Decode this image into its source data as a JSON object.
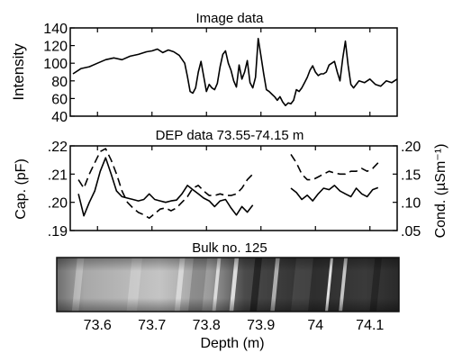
{
  "chart_data": [
    {
      "type": "line",
      "title": "Image data",
      "ylabel": "Intensity",
      "ylim": [
        40,
        140
      ],
      "yticks": [
        40,
        60,
        80,
        100,
        120,
        140
      ],
      "xlim": [
        73.55,
        74.15
      ],
      "xticks": [
        73.6,
        73.7,
        73.8,
        73.9,
        74.0,
        74.1
      ],
      "grid": false,
      "series": [
        {
          "color": "#000000",
          "x": [
            73.555,
            73.57,
            73.585,
            73.6,
            73.615,
            73.63,
            73.645,
            73.66,
            73.675,
            73.69,
            73.7,
            73.71,
            73.72,
            73.73,
            73.74,
            73.75,
            73.76,
            73.765,
            73.77,
            73.775,
            73.78,
            73.785,
            73.79,
            73.795,
            73.8,
            73.805,
            73.81,
            73.815,
            73.82,
            73.825,
            73.83,
            73.835,
            73.84,
            73.845,
            73.85,
            73.855,
            73.86,
            73.865,
            73.87,
            73.875,
            73.88,
            73.885,
            73.89,
            73.895,
            73.9,
            73.905,
            73.91,
            73.915,
            73.92,
            73.925,
            73.93,
            73.935,
            73.94,
            73.945,
            73.95,
            73.955,
            73.96,
            73.965,
            73.97,
            73.975,
            73.98,
            73.985,
            73.99,
            73.995,
            74.0,
            74.005,
            74.01,
            74.015,
            74.02,
            74.025,
            74.03,
            74.035,
            74.04,
            74.045,
            74.05,
            74.055,
            74.06,
            74.065,
            74.07,
            74.08,
            74.09,
            74.1,
            74.11,
            74.12,
            74.13,
            74.14,
            74.15
          ],
          "values": [
            88,
            94,
            96,
            100,
            104,
            106,
            104,
            108,
            110,
            113,
            114,
            116,
            112,
            115,
            113,
            109,
            100,
            85,
            68,
            66,
            72,
            90,
            102,
            85,
            68,
            76,
            72,
            70,
            77,
            96,
            110,
            114,
            100,
            92,
            80,
            73,
            98,
            82,
            90,
            103,
            78,
            72,
            84,
            128,
            108,
            88,
            70,
            68,
            65,
            62,
            58,
            62,
            56,
            52,
            55,
            54,
            58,
            70,
            68,
            72,
            78,
            84,
            92,
            97,
            90,
            86,
            88,
            88,
            90,
            98,
            100,
            102,
            90,
            80,
            105,
            125,
            98,
            76,
            72,
            80,
            78,
            82,
            76,
            74,
            80,
            78,
            82
          ]
        }
      ]
    },
    {
      "type": "line",
      "title": "DEP data 73.55-74.15 m",
      "ylabel": "Cap. (pF)",
      "ylim": [
        0.19,
        0.22
      ],
      "yticks": [
        ".19",
        ".20",
        ".21",
        ".22"
      ],
      "y2label": "Cond. (µSm⁻¹)",
      "y2lim": [
        0.05,
        0.2
      ],
      "y2ticks": [
        ".05",
        ".10",
        ".15",
        ".20"
      ],
      "xlim": [
        73.55,
        74.15
      ],
      "series": [
        {
          "axis": "left",
          "style": "solid",
          "segments": [
            {
              "x": [
                73.565,
                73.575,
                73.585,
                73.595,
                73.605,
                73.615,
                73.625,
                73.635,
                73.645,
                73.655,
                73.665,
                73.675,
                73.685,
                73.695,
                73.705,
                73.715,
                73.725,
                73.735,
                73.745,
                73.755,
                73.765,
                73.775,
                73.785,
                73.795,
                73.805,
                73.815,
                73.825,
                73.835,
                73.845,
                73.855,
                73.865,
                73.875,
                73.885
              ],
              "values": [
                0.203,
                0.1952,
                0.2,
                0.204,
                0.211,
                0.2158,
                0.21,
                0.204,
                0.202,
                0.2015,
                0.201,
                0.2005,
                0.201,
                0.203,
                0.201,
                0.2005,
                0.2,
                0.2005,
                0.2008,
                0.203,
                0.206,
                0.2045,
                0.203,
                0.2015,
                0.2005,
                0.1985,
                0.2005,
                0.201,
                0.198,
                0.1955,
                0.1985,
                0.1965,
                0.199
              ]
            },
            {
              "x": [
                73.955,
                73.965,
                73.975,
                73.985,
                73.995,
                74.005,
                74.015,
                74.025,
                74.035,
                74.045,
                74.055,
                74.065,
                74.075,
                74.085,
                74.095,
                74.105,
                74.115
              ],
              "values": [
                0.205,
                0.2035,
                0.201,
                0.2025,
                0.2005,
                0.203,
                0.205,
                0.2045,
                0.206,
                0.204,
                0.203,
                0.202,
                0.205,
                0.203,
                0.202,
                0.2045,
                0.2052
              ]
            }
          ]
        },
        {
          "axis": "right",
          "style": "dashed",
          "segments": [
            {
              "x": [
                73.565,
                73.575,
                73.585,
                73.595,
                73.605,
                73.615,
                73.625,
                73.635,
                73.645,
                73.655,
                73.665,
                73.675,
                73.685,
                73.695,
                73.705,
                73.715,
                73.725,
                73.735,
                73.745,
                73.755,
                73.765,
                73.775,
                73.785,
                73.795,
                73.805,
                73.815,
                73.825,
                73.835,
                73.845,
                73.855,
                73.865,
                73.875,
                73.885
              ],
              "values": [
                0.14,
                0.125,
                0.15,
                0.17,
                0.19,
                0.195,
                0.175,
                0.15,
                0.12,
                0.1,
                0.09,
                0.082,
                0.078,
                0.072,
                0.08,
                0.088,
                0.09,
                0.085,
                0.09,
                0.1,
                0.11,
                0.125,
                0.13,
                0.12,
                0.112,
                0.112,
                0.115,
                0.112,
                0.112,
                0.115,
                0.125,
                0.14,
                0.15
              ]
            },
            {
              "x": [
                73.955,
                73.965,
                73.975,
                73.985,
                73.995,
                74.005,
                74.015,
                74.025,
                74.035,
                74.045,
                74.055,
                74.065,
                74.075,
                74.085,
                74.095,
                74.105,
                74.115
              ],
              "values": [
                0.185,
                0.17,
                0.15,
                0.14,
                0.14,
                0.145,
                0.15,
                0.155,
                0.152,
                0.15,
                0.15,
                0.155,
                0.155,
                0.16,
                0.155,
                0.16,
                0.17
              ]
            }
          ]
        }
      ]
    },
    {
      "type": "other",
      "title": "Bulk no. 125",
      "xlabel": "Depth (m)",
      "xlim": [
        73.55,
        74.15
      ],
      "xticks": [
        "73.6",
        "73.7",
        "73.8",
        "73.9",
        "74",
        "74.1"
      ]
    }
  ]
}
